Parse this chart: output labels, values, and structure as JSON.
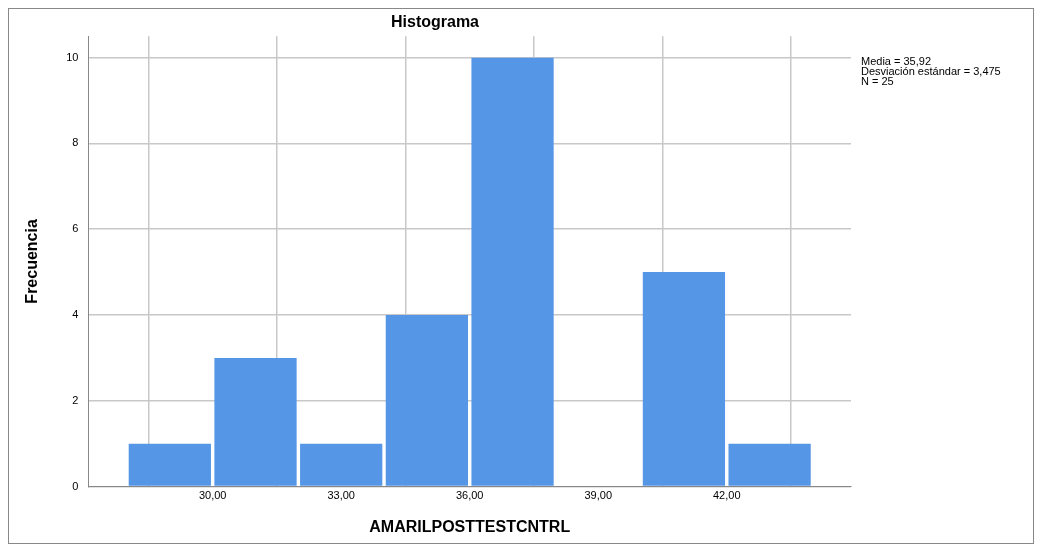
{
  "chart_data": {
    "type": "histogram",
    "title": "Histograma",
    "xlabel": "AMARILPOSTTESTCNTRL",
    "ylabel": "Frecuencia",
    "bins": [
      28,
      30,
      32,
      34,
      36,
      38,
      40,
      42,
      44
    ],
    "values": [
      1,
      3,
      1,
      4,
      10,
      0,
      5,
      1
    ],
    "color": "#5596e6",
    "xlim": [
      27.1,
      44.9
    ],
    "xticks": [
      {
        "value": 30,
        "label": "30,00"
      },
      {
        "value": 33,
        "label": "33,00"
      },
      {
        "value": 36,
        "label": "36,00"
      },
      {
        "value": 39,
        "label": "39,00"
      },
      {
        "value": 42,
        "label": "42,00"
      }
    ],
    "ylim": [
      0,
      10.5
    ],
    "yticks": [
      0,
      2,
      4,
      6,
      8,
      10
    ],
    "grid": true,
    "annotations": [
      "Media = 35,92",
      "Desviación estándar = 3,475",
      "N = 25"
    ]
  }
}
